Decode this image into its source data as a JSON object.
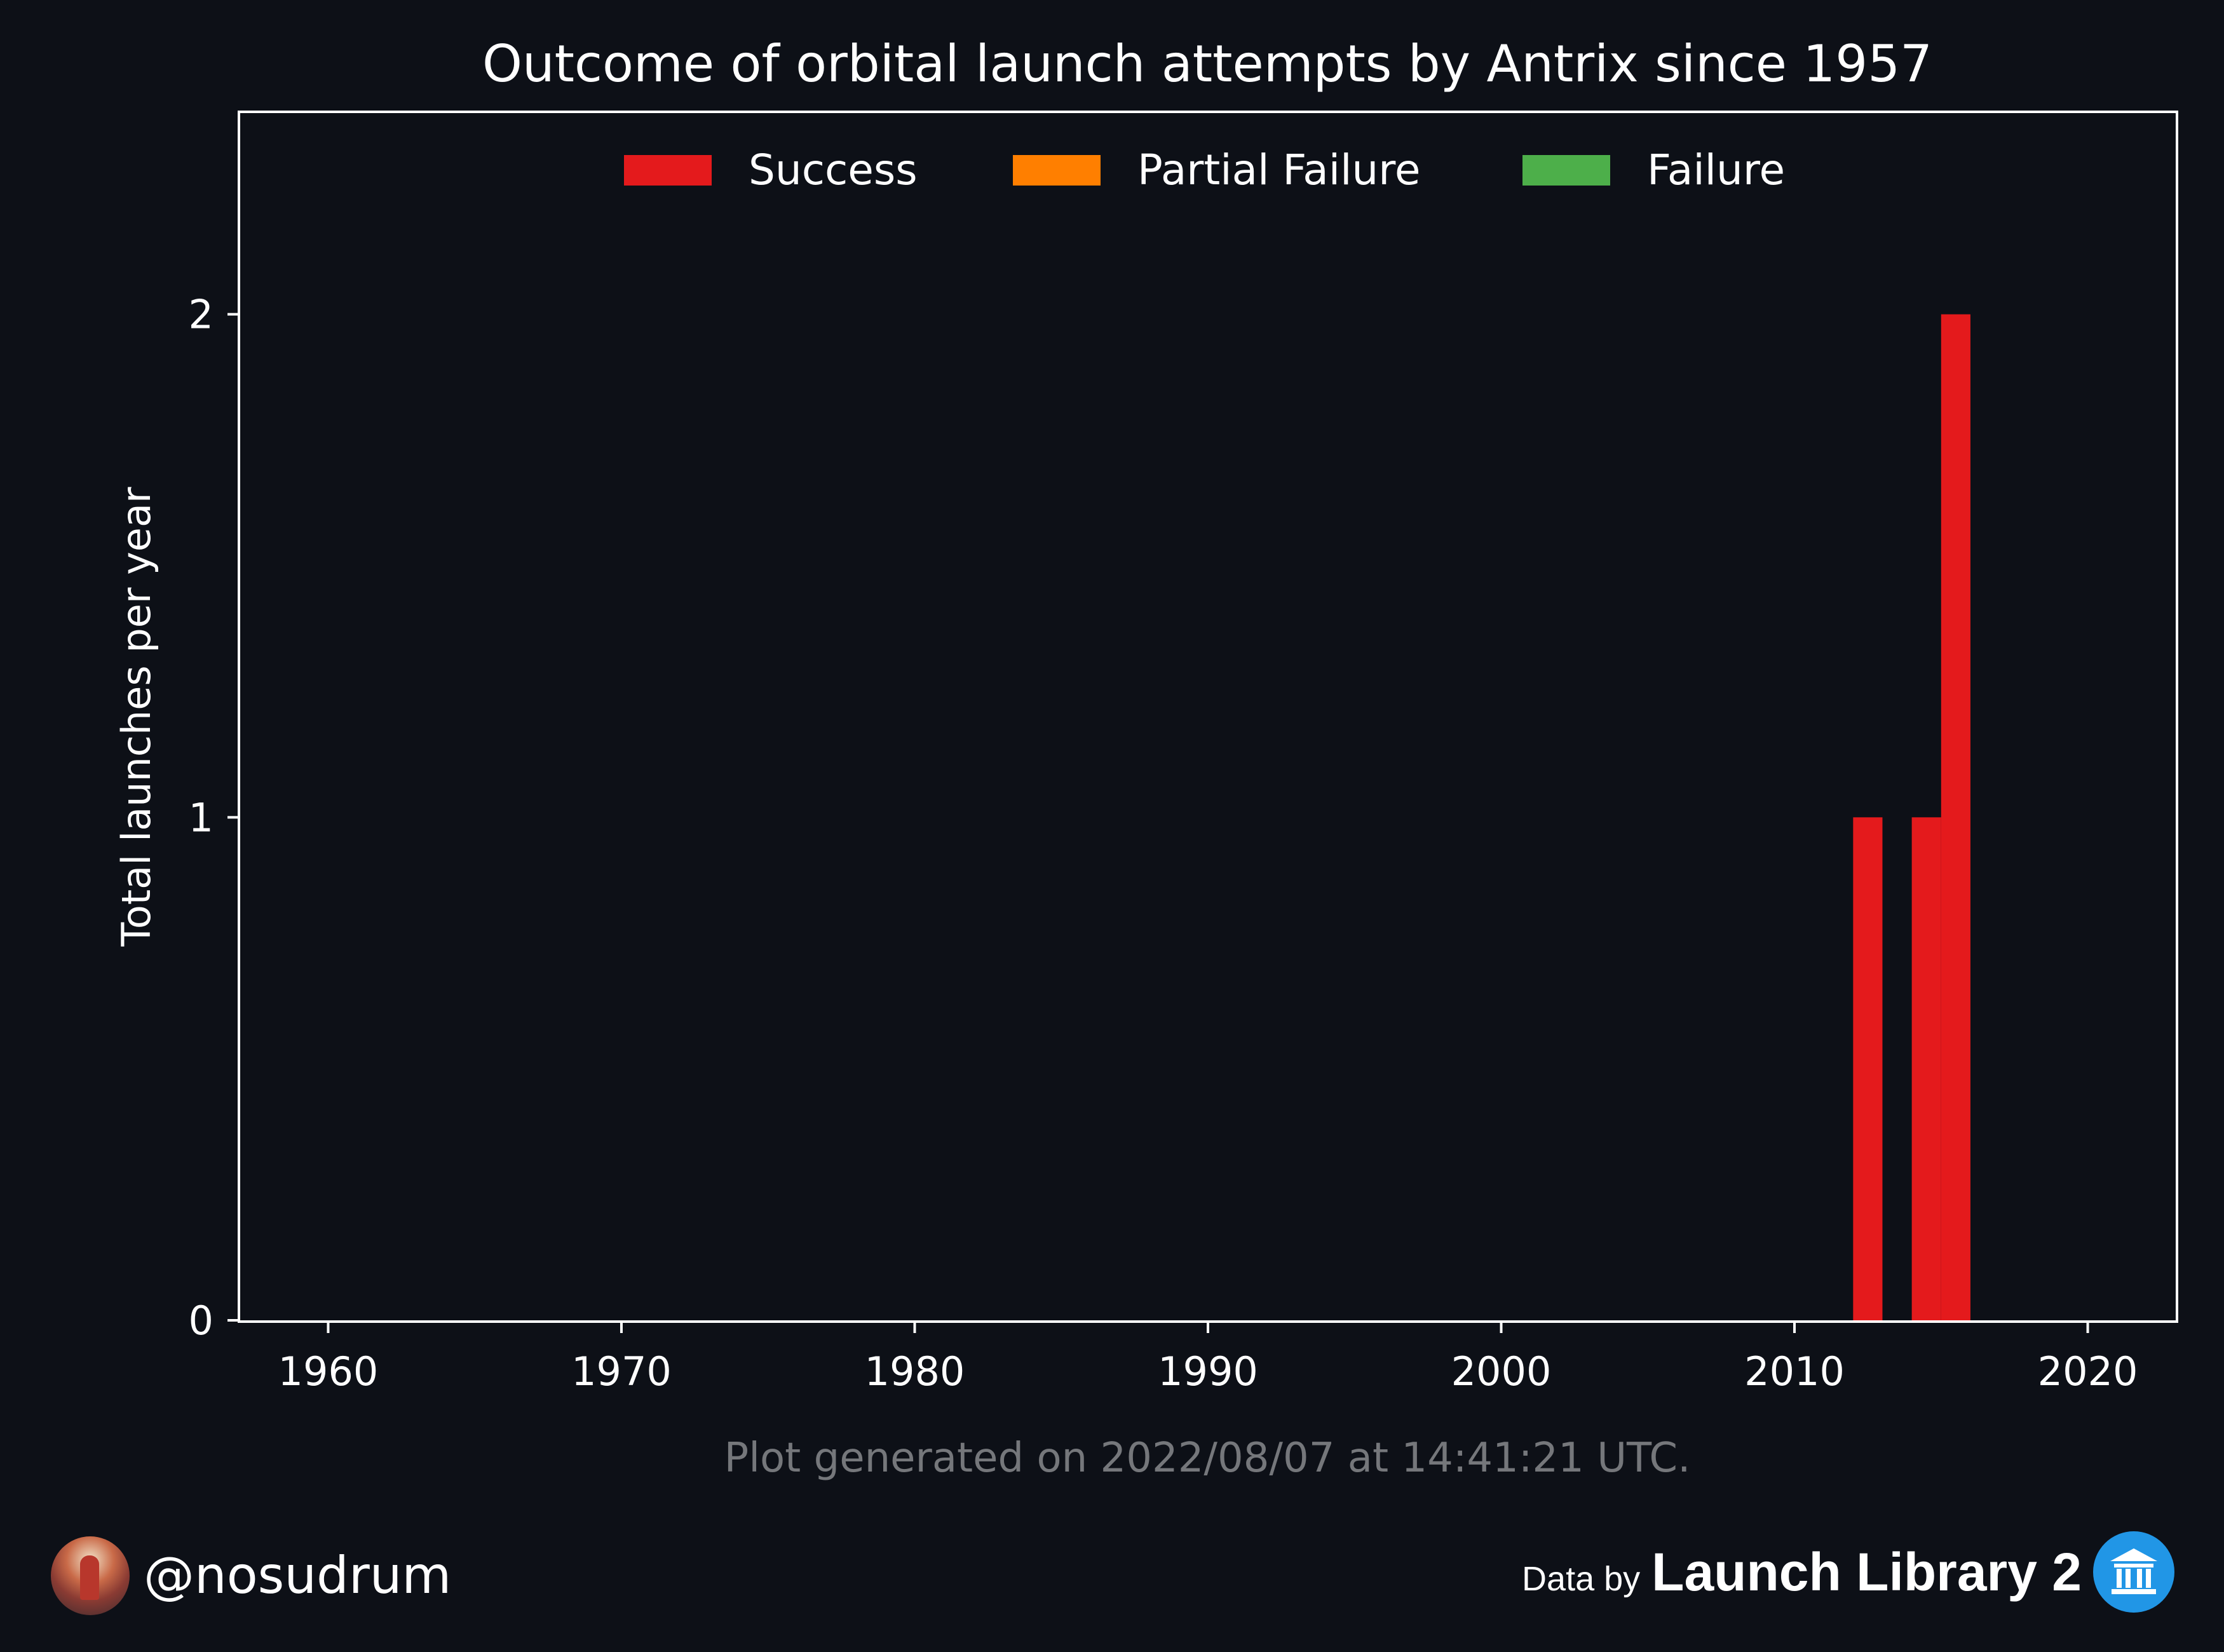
{
  "chart_data": {
    "type": "bar",
    "title": "Outcome of orbital launch attempts by Antrix since 1957",
    "ylabel": "Total launches per year",
    "xlabel": "",
    "xlim": [
      1957,
      2023
    ],
    "ylim": [
      0,
      2.4
    ],
    "xticks": [
      "1960",
      "1970",
      "1980",
      "1990",
      "2000",
      "2010",
      "2020"
    ],
    "yticks": [
      "0",
      "1",
      "2"
    ],
    "legend_position": "top-center",
    "series": [
      {
        "name": "Success",
        "color": "#e41a1c",
        "points": [
          {
            "x": 2012,
            "y": 1
          },
          {
            "x": 2014,
            "y": 1
          },
          {
            "x": 2015,
            "y": 2
          }
        ]
      },
      {
        "name": "Partial Failure",
        "color": "#ff7f00",
        "points": []
      },
      {
        "name": "Failure",
        "color": "#4daf4a",
        "points": []
      }
    ],
    "footnote": "Plot generated on 2022/08/07 at 14:41:21 UTC."
  },
  "footer": {
    "handle": "@nosudrum",
    "data_by": "Data by",
    "source_name": "Launch Library 2"
  }
}
